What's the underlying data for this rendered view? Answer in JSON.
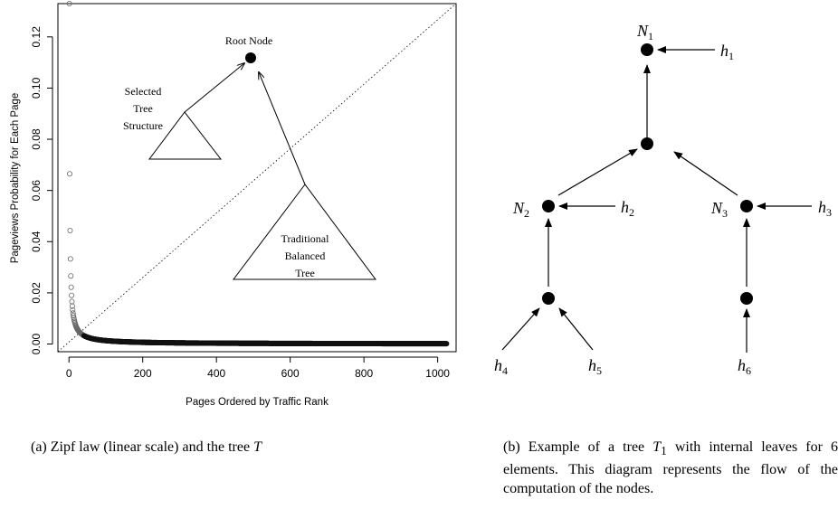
{
  "subfigure_a": {
    "chart_data": {
      "type": "scatter",
      "xlabel": "Pages Ordered by Traffic Rank",
      "ylabel": "Pageviews Probability for Each Page",
      "xlim": [
        -30,
        1050
      ],
      "ylim": [
        -0.003,
        0.133
      ],
      "x_ticks": [
        0,
        200,
        400,
        600,
        800,
        1000
      ],
      "y_ticks": [
        0.0,
        0.02,
        0.04,
        0.06,
        0.08,
        0.1,
        0.12
      ],
      "y_tick_labels": [
        "0.00",
        "0.02",
        "0.04",
        "0.06",
        "0.08",
        "0.10",
        "0.12"
      ],
      "grid": false,
      "series": [
        {
          "distribution": "zipf",
          "n_points": 1024,
          "max_value": 0.133,
          "marker": "circle"
        }
      ],
      "diagonal_reference": true
    },
    "annotations": {
      "root_node": "Root Node",
      "selected_tree": [
        "Selected",
        "Tree",
        "Structure"
      ],
      "traditional_tree": [
        "Traditional",
        "Balanced",
        "Tree"
      ]
    },
    "caption": {
      "prefix": "(a) Zipf law (linear scale) and the tree ",
      "symbol": "T"
    }
  },
  "subfigure_b": {
    "nodes": [
      {
        "id": "n1",
        "label_base": "N",
        "label_sub": "1"
      },
      {
        "id": "mid",
        "label_base": "",
        "label_sub": ""
      },
      {
        "id": "n2",
        "label_base": "N",
        "label_sub": "2"
      },
      {
        "id": "n3",
        "label_base": "N",
        "label_sub": "3"
      },
      {
        "id": "l2",
        "label_base": "",
        "label_sub": ""
      },
      {
        "id": "l3",
        "label_base": "",
        "label_sub": ""
      }
    ],
    "inputs": [
      {
        "id": "h1",
        "base": "h",
        "sub": "1"
      },
      {
        "id": "h2",
        "base": "h",
        "sub": "2"
      },
      {
        "id": "h3",
        "base": "h",
        "sub": "3"
      },
      {
        "id": "h4",
        "base": "h",
        "sub": "4"
      },
      {
        "id": "h5",
        "base": "h",
        "sub": "5"
      },
      {
        "id": "h6",
        "base": "h",
        "sub": "6"
      }
    ],
    "caption": {
      "prefix": "(b) Example of a tree ",
      "symbol": "T",
      "symbol_sub": "1",
      "rest": " with internal leaves for 6 elements. This diagram represents the flow of the computation of the nodes."
    }
  }
}
